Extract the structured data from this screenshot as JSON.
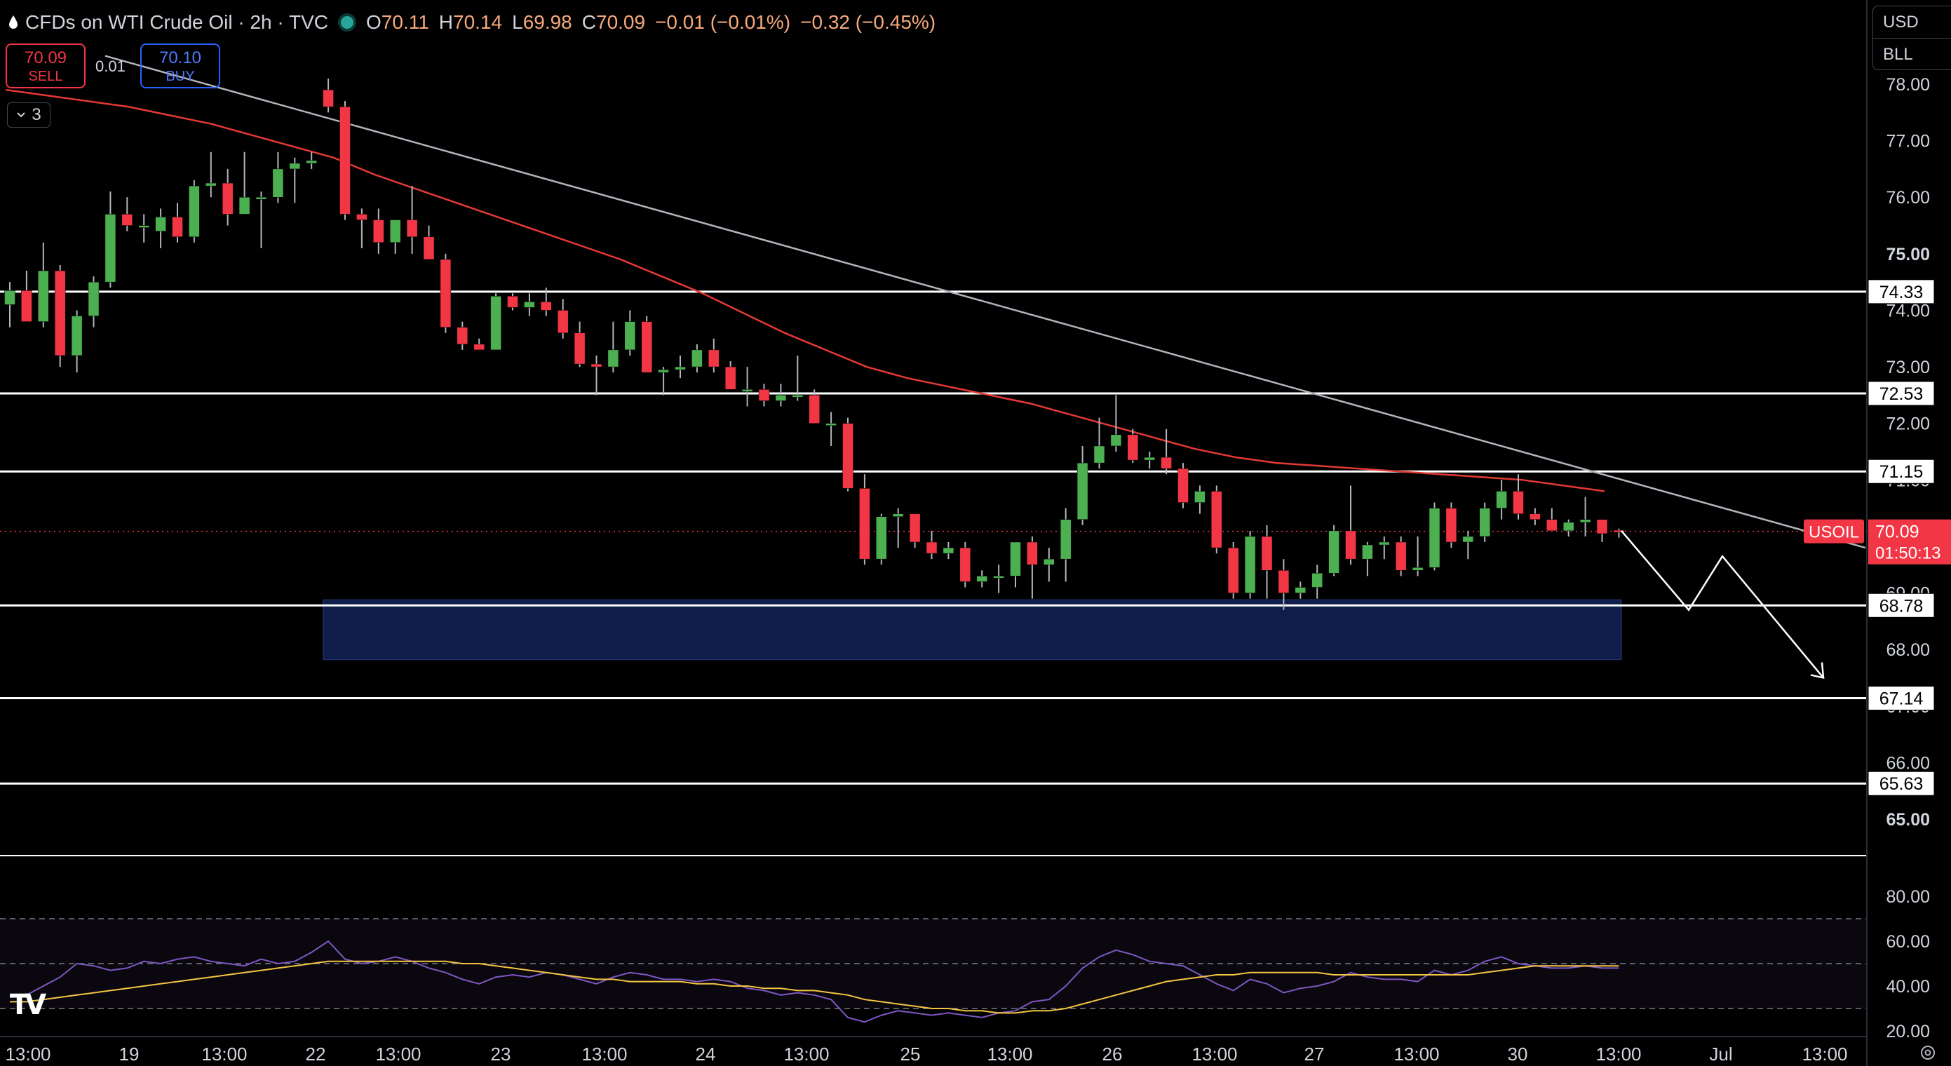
{
  "header": {
    "symbol_title": "CFDs on WTI Crude Oil · 2h · TVC",
    "open_label": "O",
    "open": "70.11",
    "high_label": "H",
    "high": "70.14",
    "low_label": "L",
    "low": "69.98",
    "close_label": "C",
    "close": "70.09",
    "change": "−0.01 (−0.01%)",
    "change_day": "−0.32 (−0.45%)"
  },
  "trade": {
    "sell_price": "70.09",
    "sell_label": "SELL",
    "buy_price": "70.10",
    "buy_label": "BUY",
    "spread": "0.01",
    "indicators_count": "3"
  },
  "currency": {
    "currency": "USD",
    "unit": "BLL"
  },
  "price_axis": {
    "ticks": [
      "78.00",
      "77.00",
      "76.00",
      "75.00",
      "74.00",
      "73.00",
      "72.00",
      "71.00",
      "69.00",
      "68.00",
      "67.00",
      "66.00",
      "65.00"
    ],
    "bold_ticks": [
      "75.00",
      "65.00"
    ],
    "level_labels": [
      "74.33",
      "72.53",
      "71.15",
      "68.78",
      "67.14",
      "65.63"
    ],
    "symbol_tag": "USOIL",
    "last_price": "70.09",
    "countdown": "01:50:13"
  },
  "rsi_axis": {
    "ticks": [
      "80.00",
      "60.00",
      "40.00",
      "20.00"
    ]
  },
  "time_axis": {
    "labels": [
      "13:00",
      "19",
      "13:00",
      "22",
      "13:00",
      "23",
      "13:00",
      "24",
      "13:00",
      "25",
      "13:00",
      "26",
      "13:00",
      "27",
      "13:00",
      "30",
      "13:00",
      "Jul",
      "13:00"
    ]
  },
  "colors": {
    "up": "#26a69a",
    "up_candle": "#4caf50",
    "down": "#f23645",
    "ma": "#e53935",
    "trendline": "#b2b5be",
    "zone": "#0f1d4a",
    "rsi": "#7e57c2",
    "rsi_ma": "#f5c542",
    "level": "#ffffff"
  },
  "chart_data": {
    "type": "candlestick",
    "title": "CFDs on WTI Crude Oil · 2h · TVC",
    "symbol": "USOIL",
    "interval": "2h",
    "ylim": [
      64.5,
      78.2
    ],
    "horizontal_levels": [
      74.33,
      72.53,
      71.15,
      68.78,
      67.14,
      65.63
    ],
    "support_zone": [
      67.82,
      68.88
    ],
    "last_price": 70.09,
    "candles": [
      {
        "o": 74.1,
        "h": 74.5,
        "l": 73.7,
        "c": 74.35
      },
      {
        "o": 74.35,
        "h": 74.7,
        "l": 73.8,
        "c": 73.8
      },
      {
        "o": 73.8,
        "h": 75.2,
        "l": 73.7,
        "c": 74.7
      },
      {
        "o": 74.7,
        "h": 74.8,
        "l": 73.0,
        "c": 73.2
      },
      {
        "o": 73.2,
        "h": 74.0,
        "l": 72.9,
        "c": 73.9
      },
      {
        "o": 73.9,
        "h": 74.6,
        "l": 73.7,
        "c": 74.5
      },
      {
        "o": 74.5,
        "h": 76.1,
        "l": 74.4,
        "c": 75.7
      },
      {
        "o": 75.7,
        "h": 76.0,
        "l": 75.4,
        "c": 75.5
      },
      {
        "o": 75.5,
        "h": 75.7,
        "l": 75.2,
        "c": 75.5
      },
      {
        "o": 75.4,
        "h": 75.8,
        "l": 75.1,
        "c": 75.65
      },
      {
        "o": 75.65,
        "h": 75.9,
        "l": 75.2,
        "c": 75.3
      },
      {
        "o": 75.3,
        "h": 76.3,
        "l": 75.2,
        "c": 76.2
      },
      {
        "o": 76.2,
        "h": 76.8,
        "l": 76.0,
        "c": 76.25
      },
      {
        "o": 76.25,
        "h": 76.5,
        "l": 75.5,
        "c": 75.7
      },
      {
        "o": 75.7,
        "h": 76.8,
        "l": 75.7,
        "c": 76.0
      },
      {
        "o": 76.0,
        "h": 76.1,
        "l": 75.1,
        "c": 76.0
      },
      {
        "o": 76.0,
        "h": 76.8,
        "l": 75.9,
        "c": 76.5
      },
      {
        "o": 76.5,
        "h": 76.7,
        "l": 75.9,
        "c": 76.6
      },
      {
        "o": 76.6,
        "h": 76.8,
        "l": 76.5,
        "c": 76.65
      },
      {
        "o": 77.9,
        "h": 78.1,
        "l": 77.5,
        "c": 77.6
      },
      {
        "o": 77.6,
        "h": 77.7,
        "l": 75.6,
        "c": 75.7
      },
      {
        "o": 75.7,
        "h": 75.8,
        "l": 75.1,
        "c": 75.6
      },
      {
        "o": 75.6,
        "h": 75.8,
        "l": 75.0,
        "c": 75.2
      },
      {
        "o": 75.2,
        "h": 75.6,
        "l": 75.0,
        "c": 75.6
      },
      {
        "o": 75.6,
        "h": 76.2,
        "l": 75.0,
        "c": 75.3
      },
      {
        "o": 75.3,
        "h": 75.5,
        "l": 74.9,
        "c": 74.9
      },
      {
        "o": 74.9,
        "h": 75.0,
        "l": 73.6,
        "c": 73.7
      },
      {
        "o": 73.7,
        "h": 73.8,
        "l": 73.3,
        "c": 73.4
      },
      {
        "o": 73.4,
        "h": 73.5,
        "l": 73.3,
        "c": 73.3
      },
      {
        "o": 73.3,
        "h": 74.3,
        "l": 73.3,
        "c": 74.25
      },
      {
        "o": 74.25,
        "h": 74.3,
        "l": 74.0,
        "c": 74.05
      },
      {
        "o": 74.05,
        "h": 74.3,
        "l": 73.9,
        "c": 74.15
      },
      {
        "o": 74.15,
        "h": 74.4,
        "l": 73.9,
        "c": 74.0
      },
      {
        "o": 74.0,
        "h": 74.2,
        "l": 73.5,
        "c": 73.6
      },
      {
        "o": 73.6,
        "h": 73.8,
        "l": 73.0,
        "c": 73.05
      },
      {
        "o": 73.05,
        "h": 73.2,
        "l": 72.5,
        "c": 73.0
      },
      {
        "o": 73.0,
        "h": 73.8,
        "l": 72.9,
        "c": 73.3
      },
      {
        "o": 73.3,
        "h": 74.0,
        "l": 73.2,
        "c": 73.8
      },
      {
        "o": 73.8,
        "h": 73.9,
        "l": 72.9,
        "c": 72.9
      },
      {
        "o": 72.9,
        "h": 73.0,
        "l": 72.5,
        "c": 72.95
      },
      {
        "o": 72.95,
        "h": 73.2,
        "l": 72.8,
        "c": 73.0
      },
      {
        "o": 73.0,
        "h": 73.4,
        "l": 72.9,
        "c": 73.3
      },
      {
        "o": 73.3,
        "h": 73.5,
        "l": 72.9,
        "c": 73.0
      },
      {
        "o": 73.0,
        "h": 73.1,
        "l": 72.6,
        "c": 72.6
      },
      {
        "o": 72.6,
        "h": 73.0,
        "l": 72.3,
        "c": 72.6
      },
      {
        "o": 72.6,
        "h": 72.7,
        "l": 72.3,
        "c": 72.4
      },
      {
        "o": 72.4,
        "h": 72.7,
        "l": 72.3,
        "c": 72.5
      },
      {
        "o": 72.5,
        "h": 73.2,
        "l": 72.4,
        "c": 72.5
      },
      {
        "o": 72.5,
        "h": 72.6,
        "l": 72.0,
        "c": 72.0
      },
      {
        "o": 72.0,
        "h": 72.2,
        "l": 71.6,
        "c": 72.0
      },
      {
        "o": 72.0,
        "h": 72.1,
        "l": 70.8,
        "c": 70.85
      },
      {
        "o": 70.85,
        "h": 71.1,
        "l": 69.5,
        "c": 69.6
      },
      {
        "o": 69.6,
        "h": 70.4,
        "l": 69.5,
        "c": 70.35
      },
      {
        "o": 70.35,
        "h": 70.5,
        "l": 69.8,
        "c": 70.4
      },
      {
        "o": 70.4,
        "h": 70.4,
        "l": 69.8,
        "c": 69.9
      },
      {
        "o": 69.9,
        "h": 70.1,
        "l": 69.6,
        "c": 69.7
      },
      {
        "o": 69.7,
        "h": 69.9,
        "l": 69.6,
        "c": 69.8
      },
      {
        "o": 69.8,
        "h": 69.9,
        "l": 69.1,
        "c": 69.2
      },
      {
        "o": 69.2,
        "h": 69.4,
        "l": 69.1,
        "c": 69.3
      },
      {
        "o": 69.3,
        "h": 69.5,
        "l": 69.0,
        "c": 69.3
      },
      {
        "o": 69.3,
        "h": 69.9,
        "l": 69.1,
        "c": 69.9
      },
      {
        "o": 69.9,
        "h": 70.0,
        "l": 68.9,
        "c": 69.5
      },
      {
        "o": 69.5,
        "h": 69.8,
        "l": 69.2,
        "c": 69.6
      },
      {
        "o": 69.6,
        "h": 70.5,
        "l": 69.2,
        "c": 70.3
      },
      {
        "o": 70.3,
        "h": 71.6,
        "l": 70.2,
        "c": 71.3
      },
      {
        "o": 71.3,
        "h": 72.1,
        "l": 71.2,
        "c": 71.6
      },
      {
        "o": 71.6,
        "h": 72.5,
        "l": 71.5,
        "c": 71.8
      },
      {
        "o": 71.8,
        "h": 71.9,
        "l": 71.3,
        "c": 71.35
      },
      {
        "o": 71.35,
        "h": 71.5,
        "l": 71.2,
        "c": 71.4
      },
      {
        "o": 71.4,
        "h": 71.9,
        "l": 71.1,
        "c": 71.2
      },
      {
        "o": 71.2,
        "h": 71.3,
        "l": 70.5,
        "c": 70.6
      },
      {
        "o": 70.6,
        "h": 70.9,
        "l": 70.4,
        "c": 70.8
      },
      {
        "o": 70.8,
        "h": 70.9,
        "l": 69.7,
        "c": 69.8
      },
      {
        "o": 69.8,
        "h": 69.9,
        "l": 68.9,
        "c": 69.0
      },
      {
        "o": 69.0,
        "h": 70.1,
        "l": 68.9,
        "c": 70.0
      },
      {
        "o": 70.0,
        "h": 70.2,
        "l": 68.9,
        "c": 69.4
      },
      {
        "o": 69.4,
        "h": 69.6,
        "l": 68.7,
        "c": 69.0
      },
      {
        "o": 69.0,
        "h": 69.2,
        "l": 68.9,
        "c": 69.1
      },
      {
        "o": 69.1,
        "h": 69.5,
        "l": 68.9,
        "c": 69.35
      },
      {
        "o": 69.35,
        "h": 70.2,
        "l": 69.3,
        "c": 70.1
      },
      {
        "o": 70.1,
        "h": 70.9,
        "l": 69.5,
        "c": 69.6
      },
      {
        "o": 69.6,
        "h": 69.9,
        "l": 69.3,
        "c": 69.85
      },
      {
        "o": 69.85,
        "h": 70.0,
        "l": 69.6,
        "c": 69.9
      },
      {
        "o": 69.9,
        "h": 70.0,
        "l": 69.3,
        "c": 69.4
      },
      {
        "o": 69.4,
        "h": 70.0,
        "l": 69.3,
        "c": 69.45
      },
      {
        "o": 69.45,
        "h": 70.6,
        "l": 69.4,
        "c": 70.5
      },
      {
        "o": 70.5,
        "h": 70.6,
        "l": 69.8,
        "c": 69.9
      },
      {
        "o": 69.9,
        "h": 70.1,
        "l": 69.6,
        "c": 70.0
      },
      {
        "o": 70.0,
        "h": 70.6,
        "l": 69.9,
        "c": 70.5
      },
      {
        "o": 70.5,
        "h": 71.0,
        "l": 70.3,
        "c": 70.8
      },
      {
        "o": 70.8,
        "h": 71.1,
        "l": 70.3,
        "c": 70.4
      },
      {
        "o": 70.4,
        "h": 70.5,
        "l": 70.2,
        "c": 70.3
      },
      {
        "o": 70.3,
        "h": 70.5,
        "l": 70.1,
        "c": 70.1
      },
      {
        "o": 70.1,
        "h": 70.3,
        "l": 70.0,
        "c": 70.25
      },
      {
        "o": 70.25,
        "h": 70.7,
        "l": 70.0,
        "c": 70.3
      },
      {
        "o": 70.3,
        "h": 70.3,
        "l": 69.9,
        "c": 70.05
      },
      {
        "o": 70.11,
        "h": 70.14,
        "l": 69.98,
        "c": 70.09
      }
    ],
    "rsi": {
      "ylim": [
        15,
        85
      ],
      "bands": [
        70,
        50,
        30
      ],
      "values": [
        35,
        36,
        40,
        44,
        50,
        49,
        47,
        48,
        51,
        50,
        52,
        53,
        51,
        50,
        49,
        52,
        50,
        51,
        55,
        60,
        52,
        50,
        51,
        53,
        51,
        48,
        46,
        43,
        41,
        44,
        45,
        44,
        46,
        45,
        43,
        41,
        44,
        46,
        45,
        43,
        43,
        42,
        43,
        42,
        39,
        38,
        36,
        37,
        36,
        34,
        26,
        24,
        27,
        29,
        28,
        27,
        28,
        27,
        26,
        28,
        29,
        33,
        34,
        40,
        48,
        53,
        56,
        54,
        51,
        50,
        49,
        45,
        41,
        38,
        43,
        41,
        37,
        39,
        40,
        42,
        46,
        44,
        43,
        43,
        42,
        47,
        45,
        47,
        51,
        53,
        50,
        49,
        48,
        48,
        49,
        48,
        48
      ],
      "ma_values": [
        33,
        33,
        34,
        35,
        36,
        37,
        38,
        39,
        40,
        41,
        42,
        43,
        44,
        45,
        46,
        47,
        48,
        49,
        50,
        51,
        51,
        51,
        51,
        51,
        51,
        51,
        51,
        50,
        50,
        49,
        48,
        47,
        46,
        45,
        44,
        43,
        43,
        42,
        42,
        42,
        42,
        41,
        41,
        40,
        40,
        39,
        39,
        38,
        38,
        37,
        36,
        34,
        33,
        32,
        31,
        30,
        30,
        29,
        29,
        28,
        28,
        29,
        29,
        30,
        32,
        34,
        36,
        38,
        40,
        42,
        43,
        44,
        45,
        45,
        46,
        46,
        46,
        46,
        46,
        45,
        45,
        45,
        45,
        45,
        45,
        45,
        45,
        45,
        46,
        47,
        48,
        49,
        49,
        49,
        49,
        49,
        49
      ]
    },
    "ma_line": [
      77.9,
      77.8,
      77.7,
      77.6,
      77.45,
      77.3,
      77.1,
      76.9,
      76.7,
      76.4,
      76.15,
      75.9,
      75.65,
      75.4,
      75.15,
      74.9,
      74.6,
      74.3,
      73.95,
      73.6,
      73.3,
      73.0,
      72.8,
      72.65,
      72.5,
      72.35,
      72.15,
      71.95,
      71.75,
      71.55,
      71.4,
      71.3,
      71.25,
      71.2,
      71.15,
      71.1,
      71.05,
      71.0,
      70.9,
      70.8
    ],
    "trendline": [
      78.5,
      69.8
    ],
    "projection": [
      70.1,
      68.7,
      69.65,
      67.5
    ]
  }
}
